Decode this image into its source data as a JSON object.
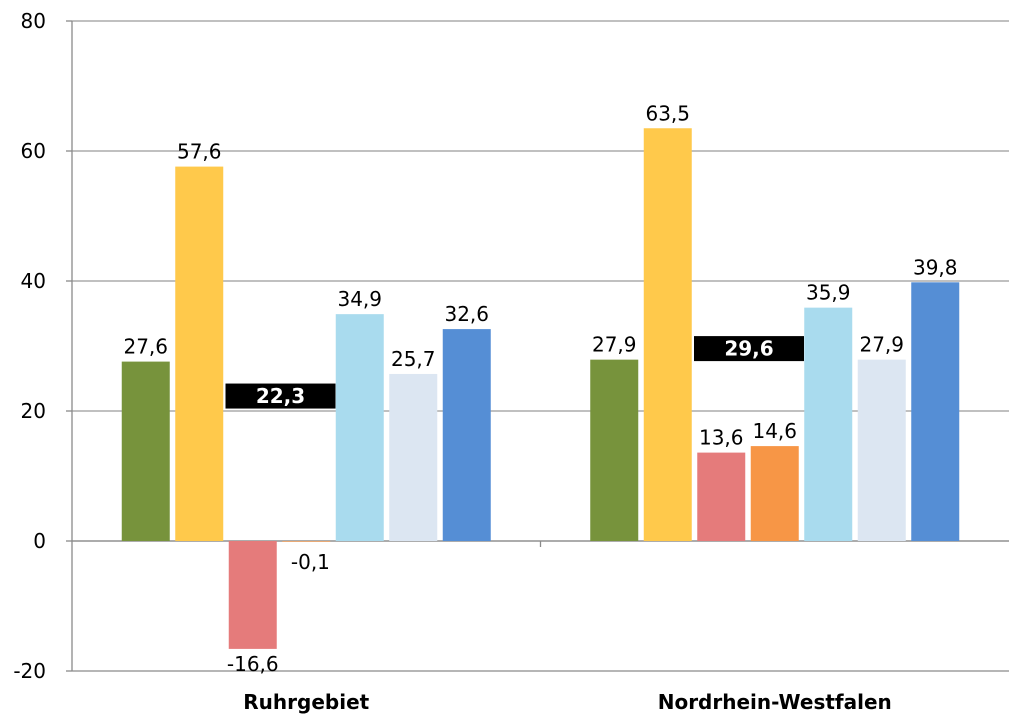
{
  "chart_data": {
    "type": "bar",
    "categories": [
      "Ruhrgebiet",
      "Nordrhein-Westfalen"
    ],
    "ylim": [
      -20,
      80
    ],
    "yticks": [
      -20,
      0,
      20,
      40,
      60,
      80
    ],
    "ytick_labels": [
      "-20",
      "0",
      "20",
      "40",
      "60",
      "80"
    ],
    "grid": true,
    "legend": "none",
    "series": [
      {
        "color": "#77933C",
        "values": [
          27.6,
          27.9
        ],
        "labels": [
          "27,6",
          "27,9"
        ]
      },
      {
        "color": "#FFC94B",
        "values": [
          57.6,
          63.5
        ],
        "labels": [
          "57,6",
          "63,5"
        ]
      },
      {
        "color": "#E57B7B",
        "values": [
          -16.6,
          13.6
        ],
        "labels": [
          "-16,6",
          "13,6"
        ]
      },
      {
        "color": "#F79646",
        "values": [
          -0.1,
          14.6
        ],
        "labels": [
          "-0,1",
          "14,6"
        ]
      },
      {
        "color": "#A9DBEE",
        "values": [
          34.9,
          35.9
        ],
        "labels": [
          "34,9",
          "35,9"
        ]
      },
      {
        "color": "#DCE6F2",
        "values": [
          25.7,
          27.9
        ],
        "labels": [
          "25,7",
          "27,9"
        ]
      },
      {
        "color": "#558ED5",
        "values": [
          32.6,
          39.8
        ],
        "labels": [
          "32,6",
          "39,8"
        ]
      }
    ],
    "averages": {
      "values": [
        22.3,
        29.6
      ],
      "labels": [
        "22,3",
        "29,6"
      ],
      "color": "#000000"
    }
  }
}
